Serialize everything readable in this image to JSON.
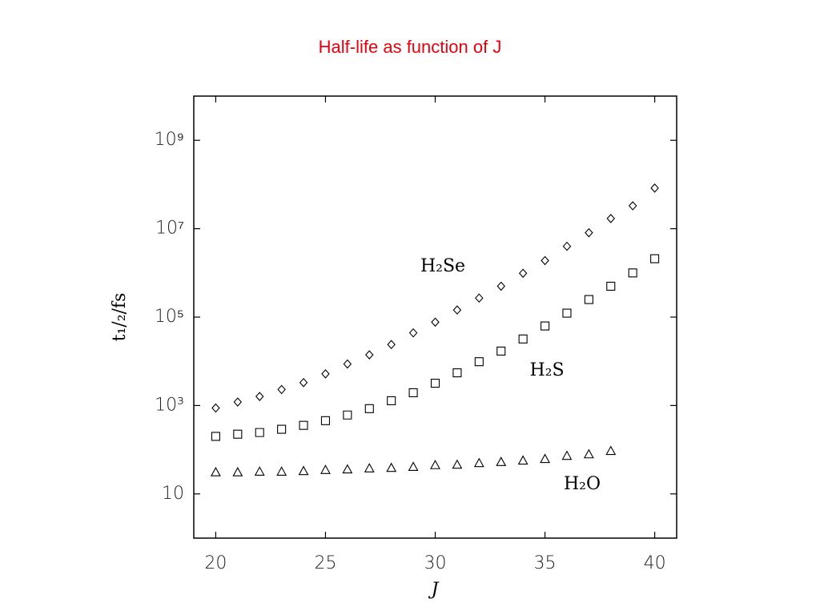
{
  "chart_data": {
    "type": "scatter",
    "title": "Half-life as function of J",
    "xlabel": "J",
    "ylabel": "t₁/₂/fs",
    "log_y": true,
    "xlim": [
      19,
      41
    ],
    "ylim": [
      1,
      10000000000
    ],
    "xticks": [
      20,
      25,
      30,
      35,
      40
    ],
    "yticks": [
      10,
      {
        "value": 1000,
        "label": "10³"
      },
      {
        "value": 100000,
        "label": "10⁵"
      },
      {
        "value": 10000000,
        "label": "10⁷"
      },
      {
        "value": 1000000000,
        "label": "10⁹"
      }
    ],
    "series": [
      {
        "name": "H₂Se",
        "color": "#000000",
        "marker": "diamond",
        "x": [
          20,
          21,
          22,
          23,
          24,
          25,
          26,
          27,
          28,
          29,
          30,
          31,
          32,
          33,
          34,
          35,
          36,
          37,
          38,
          39,
          40
        ],
        "values": [
          880,
          1200,
          1600,
          2300,
          3300,
          5200,
          8700,
          14000,
          24000,
          44000,
          77000,
          145000,
          270000,
          500000,
          980000,
          1900000,
          4000000,
          8100000,
          17000000,
          33000000,
          83000000
        ]
      },
      {
        "name": "H₂S",
        "color": "#000000",
        "marker": "square",
        "x": [
          20,
          21,
          22,
          23,
          24,
          25,
          26,
          27,
          28,
          29,
          30,
          31,
          32,
          33,
          34,
          35,
          36,
          37,
          38,
          39,
          40
        ],
        "values": [
          200,
          225,
          245,
          290,
          355,
          455,
          610,
          850,
          1280,
          1950,
          3200,
          5500,
          9800,
          17000,
          32000,
          63000,
          123000,
          250000,
          500000,
          1000000,
          2100000
        ]
      },
      {
        "name": "H₂O",
        "color": "#000000",
        "marker": "triangle",
        "x": [
          20,
          21,
          22,
          23,
          24,
          25,
          26,
          27,
          28,
          29,
          30,
          31,
          32,
          33,
          34,
          35,
          36,
          37,
          38
        ],
        "values": [
          31,
          31,
          32,
          32,
          33,
          35,
          36,
          38,
          39,
          41,
          45,
          46,
          50,
          53,
          57,
          62,
          73,
          79,
          94
        ]
      }
    ]
  }
}
